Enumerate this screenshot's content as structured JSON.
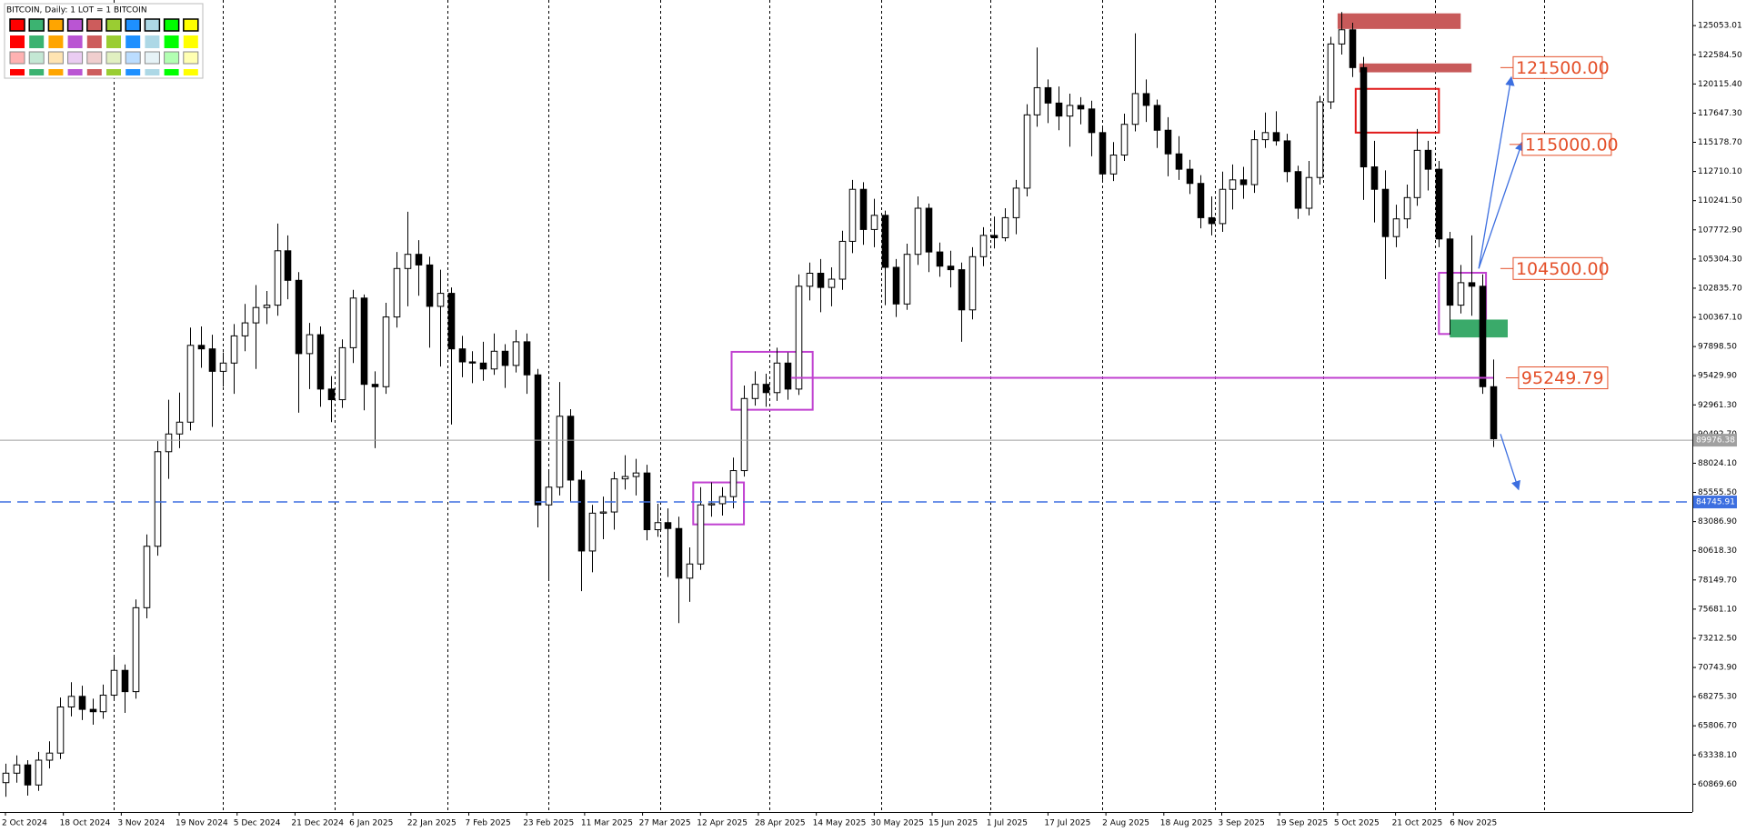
{
  "chart_data": {
    "type": "candlestick",
    "title": "BITCOIN, Daily:  1 LOT = 1 BITCOIN",
    "colors": {
      "up": "#ffffff",
      "down": "#000000",
      "outline": "#000000"
    },
    "x": [
      0,
      3,
      6,
      9,
      12,
      15,
      18,
      21,
      24,
      27,
      30,
      33,
      36,
      39,
      42,
      45,
      48,
      51,
      54,
      57,
      60,
      63,
      66,
      69,
      72,
      75,
      78,
      81,
      84,
      87,
      90,
      93,
      96,
      99,
      102,
      105,
      108,
      111,
      114,
      117,
      120,
      123,
      126,
      129,
      132,
      135,
      138,
      141,
      144,
      147,
      150,
      153,
      156,
      159,
      162,
      165,
      168,
      171,
      174,
      177,
      180,
      183,
      186,
      189,
      192,
      195,
      198,
      201,
      204,
      207,
      210,
      213,
      216,
      219,
      222,
      225,
      228,
      231,
      234,
      237,
      240,
      243,
      246,
      249,
      252,
      255,
      258,
      261,
      264,
      267,
      270,
      273,
      276,
      279,
      282,
      285,
      288,
      291,
      294,
      297,
      300,
      303,
      306,
      309,
      312,
      315,
      318,
      321,
      324,
      327,
      330,
      333,
      336,
      339,
      342,
      345,
      348,
      351,
      354,
      357,
      360,
      363,
      366,
      369,
      372,
      375,
      378,
      381,
      384,
      387,
      390,
      393,
      396,
      399,
      402,
      405,
      408,
      411
    ],
    "ohlc": [
      [
        61000,
        62600,
        59800,
        61800
      ],
      [
        61800,
        63300,
        61000,
        62500
      ],
      [
        62500,
        62900,
        59900,
        60800
      ],
      [
        60800,
        63600,
        60300,
        62900
      ],
      [
        62900,
        64500,
        62200,
        63500
      ],
      [
        63500,
        68200,
        63000,
        67400
      ],
      [
        67400,
        69500,
        66600,
        68300
      ],
      [
        68300,
        69200,
        66300,
        67200
      ],
      [
        67200,
        68100,
        65900,
        67000
      ],
      [
        67000,
        69300,
        66400,
        68400
      ],
      [
        68400,
        71800,
        67900,
        70500
      ],
      [
        70500,
        71000,
        66900,
        68700
      ],
      [
        68700,
        76500,
        68100,
        75800
      ],
      [
        75800,
        82000,
        74900,
        81000
      ],
      [
        81000,
        89900,
        80200,
        89000
      ],
      [
        89000,
        93400,
        86700,
        90500
      ],
      [
        90500,
        94000,
        89300,
        91500
      ],
      [
        91500,
        99500,
        90800,
        98000
      ],
      [
        98000,
        99600,
        96100,
        97700
      ],
      [
        97700,
        98900,
        91100,
        95800
      ],
      [
        95800,
        97400,
        94500,
        96500
      ],
      [
        96500,
        99800,
        93900,
        98800
      ],
      [
        98800,
        101500,
        97500,
        99900
      ],
      [
        99900,
        103100,
        96000,
        101200
      ],
      [
        101200,
        102600,
        99800,
        101400
      ],
      [
        101400,
        108300,
        100500,
        106000
      ],
      [
        106000,
        107300,
        101900,
        103500
      ],
      [
        103500,
        104200,
        92300,
        97300
      ],
      [
        97300,
        99900,
        94300,
        98900
      ],
      [
        98900,
        99600,
        92800,
        94300
      ],
      [
        94300,
        95400,
        91500,
        93400
      ],
      [
        93400,
        98500,
        92700,
        97800
      ],
      [
        97800,
        102700,
        96500,
        102000
      ],
      [
        102000,
        102300,
        92500,
        94700
      ],
      [
        94700,
        95800,
        89300,
        94500
      ],
      [
        94500,
        101600,
        93900,
        100400
      ],
      [
        100400,
        105900,
        99500,
        104500
      ],
      [
        104500,
        109300,
        101300,
        105700
      ],
      [
        105700,
        106900,
        102200,
        104800
      ],
      [
        104800,
        105500,
        97800,
        101300
      ],
      [
        101300,
        104400,
        96200,
        102400
      ],
      [
        102400,
        102900,
        91300,
        97700
      ],
      [
        97700,
        98800,
        95300,
        96600
      ],
      [
        96600,
        97500,
        94800,
        96500
      ],
      [
        96500,
        98300,
        95000,
        96000
      ],
      [
        96000,
        99000,
        95500,
        97500
      ],
      [
        97500,
        98100,
        94400,
        96300
      ],
      [
        96300,
        99300,
        95700,
        98300
      ],
      [
        98300,
        99000,
        93900,
        95500
      ],
      [
        95500,
        96000,
        82600,
        84500
      ],
      [
        84500,
        87500,
        78200,
        86000
      ],
      [
        86000,
        94900,
        85300,
        92000
      ],
      [
        92000,
        92600,
        84700,
        86600
      ],
      [
        86600,
        87400,
        77200,
        80600
      ],
      [
        80600,
        84500,
        78800,
        83800
      ],
      [
        83800,
        85200,
        81600,
        83900
      ],
      [
        83900,
        87300,
        82400,
        86700
      ],
      [
        86700,
        88700,
        85800,
        86900
      ],
      [
        86900,
        88400,
        85300,
        87200
      ],
      [
        87200,
        87900,
        81500,
        82400
      ],
      [
        82400,
        84600,
        81800,
        83000
      ],
      [
        83000,
        84200,
        78400,
        82500
      ],
      [
        82500,
        83500,
        74500,
        78300
      ],
      [
        78300,
        80900,
        76300,
        79500
      ],
      [
        79500,
        86000,
        79000,
        84500
      ],
      [
        84500,
        86400,
        83500,
        84600
      ],
      [
        84600,
        86000,
        83600,
        85200
      ],
      [
        85200,
        88500,
        84200,
        87400
      ],
      [
        87400,
        94600,
        86900,
        93500
      ],
      [
        93500,
        95800,
        92900,
        94700
      ],
      [
        94700,
        95600,
        92800,
        94000
      ],
      [
        94000,
        97800,
        93300,
        96500
      ],
      [
        96500,
        97400,
        93400,
        94300
      ],
      [
        94300,
        104000,
        93800,
        103000
      ],
      [
        103000,
        105000,
        101800,
        104100
      ],
      [
        104100,
        105300,
        100800,
        102900
      ],
      [
        102900,
        104600,
        101300,
        103600
      ],
      [
        103600,
        107700,
        102700,
        106800
      ],
      [
        106800,
        112000,
        105800,
        111200
      ],
      [
        111200,
        111800,
        106500,
        107800
      ],
      [
        107800,
        110400,
        106300,
        109000
      ],
      [
        109000,
        109400,
        101400,
        104600
      ],
      [
        104600,
        105300,
        100400,
        101500
      ],
      [
        101500,
        106600,
        101000,
        105700
      ],
      [
        105700,
        110600,
        104800,
        109600
      ],
      [
        109600,
        110000,
        104200,
        105900
      ],
      [
        105900,
        106700,
        103800,
        104700
      ],
      [
        104700,
        106000,
        102900,
        104400
      ],
      [
        104400,
        105000,
        98300,
        101000
      ],
      [
        101000,
        106300,
        100200,
        105500
      ],
      [
        105500,
        108000,
        104700,
        107300
      ],
      [
        107300,
        108900,
        106200,
        107100
      ],
      [
        107100,
        109600,
        106800,
        108800
      ],
      [
        108800,
        112000,
        107400,
        111300
      ],
      [
        111300,
        118400,
        110600,
        117500
      ],
      [
        117500,
        123200,
        116500,
        119800
      ],
      [
        119800,
        120500,
        116800,
        118500
      ],
      [
        118500,
        119900,
        116200,
        117400
      ],
      [
        117400,
        119300,
        114800,
        118300
      ],
      [
        118300,
        119000,
        116700,
        118000
      ],
      [
        118000,
        118700,
        114000,
        116000
      ],
      [
        116000,
        116500,
        112000,
        112500
      ],
      [
        112500,
        115200,
        111900,
        114100
      ],
      [
        114100,
        117600,
        113600,
        116700
      ],
      [
        116700,
        124400,
        116100,
        119300
      ],
      [
        119300,
        120500,
        116900,
        118300
      ],
      [
        118300,
        118800,
        114700,
        116200
      ],
      [
        116200,
        117300,
        112300,
        114200
      ],
      [
        114200,
        115700,
        112000,
        112900
      ],
      [
        112900,
        113700,
        110800,
        111700
      ],
      [
        111700,
        112400,
        107900,
        108800
      ],
      [
        108800,
        110600,
        107300,
        108300
      ],
      [
        108300,
        112700,
        107600,
        111200
      ],
      [
        111200,
        113300,
        109500,
        112000
      ],
      [
        112000,
        113100,
        110400,
        111600
      ],
      [
        111600,
        116200,
        110900,
        115400
      ],
      [
        115400,
        117700,
        114700,
        116000
      ],
      [
        116000,
        117800,
        114900,
        115300
      ],
      [
        115300,
        115900,
        111800,
        112700
      ],
      [
        112700,
        113200,
        108700,
        109600
      ],
      [
        109600,
        113600,
        109000,
        112200
      ],
      [
        112200,
        119100,
        111600,
        118600
      ],
      [
        118600,
        124100,
        118000,
        123500
      ],
      [
        123500,
        126200,
        122600,
        124700
      ],
      [
        124700,
        125300,
        120700,
        121500
      ],
      [
        121500,
        122400,
        110300,
        113100
      ],
      [
        113100,
        115300,
        108400,
        111200
      ],
      [
        111200,
        112800,
        103600,
        107200
      ],
      [
        107200,
        109900,
        106300,
        108700
      ],
      [
        108700,
        111600,
        107900,
        110500
      ],
      [
        110500,
        116300,
        109800,
        114500
      ],
      [
        114500,
        115300,
        111100,
        112900
      ],
      [
        112900,
        113600,
        106300,
        107000
      ],
      [
        107000,
        107600,
        98900,
        101400
      ],
      [
        101400,
        104800,
        100700,
        103300
      ],
      [
        103300,
        107300,
        100500,
        103000
      ],
      [
        103000,
        104000,
        93900,
        94500
      ],
      [
        94500,
        96800,
        89400,
        90100
      ]
    ],
    "xlim": [
      -1.5,
      466
    ],
    "ylim": [
      58515,
      127220
    ],
    "xticks": [
      {
        "value": 0,
        "label": "2 Oct 2024"
      },
      {
        "value": 16,
        "label": "18 Oct 2024"
      },
      {
        "value": 32,
        "label": "3 Nov 2024"
      },
      {
        "value": 48,
        "label": "19 Nov 2024"
      },
      {
        "value": 64,
        "label": "5 Dec 2024"
      },
      {
        "value": 80,
        "label": "21 Dec 2024"
      },
      {
        "value": 96,
        "label": "6 Jan 2025"
      },
      {
        "value": 112,
        "label": "22 Jan 2025"
      },
      {
        "value": 128,
        "label": "7 Feb 2025"
      },
      {
        "value": 144,
        "label": "23 Feb 2025"
      },
      {
        "value": 160,
        "label": "11 Mar 2025"
      },
      {
        "value": 176,
        "label": "27 Mar 2025"
      },
      {
        "value": 192,
        "label": "12 Apr 2025"
      },
      {
        "value": 208,
        "label": "28 Apr 2025"
      },
      {
        "value": 224,
        "label": "14 May 2025"
      },
      {
        "value": 240,
        "label": "30 May 2025"
      },
      {
        "value": 256,
        "label": "15 Jun 2025"
      },
      {
        "value": 272,
        "label": "1 Jul 2025"
      },
      {
        "value": 288,
        "label": "17 Jul 2025"
      },
      {
        "value": 304,
        "label": "2 Aug 2025"
      },
      {
        "value": 320,
        "label": "18 Aug 2025"
      },
      {
        "value": 336,
        "label": "3 Sep 2025"
      },
      {
        "value": 352,
        "label": "19 Sep 2025"
      },
      {
        "value": 368,
        "label": "5 Oct 2025"
      },
      {
        "value": 384,
        "label": "21 Oct 2025"
      },
      {
        "value": 400,
        "label": "6 Nov 2025"
      }
    ],
    "yticks": [
      125053.01,
      {
        "value": 122584.5,
        "label": "122584.50"
      },
      {
        "value": 120115.4,
        "label": "120115.40"
      },
      {
        "value": 117647.3,
        "label": "117647.30"
      },
      {
        "value": 115178.7,
        "label": "115178.70"
      },
      {
        "value": 112710.1,
        "label": "112710.10"
      },
      {
        "value": 110241.5,
        "label": "110241.50"
      },
      {
        "value": 107772.9,
        "label": "107772.90"
      },
      {
        "value": 105304.3,
        "label": "105304.30"
      },
      {
        "value": 102835.7,
        "label": "102835.70"
      },
      {
        "value": 100367.1,
        "label": "100367.10"
      },
      {
        "value": 97898.5,
        "label": "97898.50"
      },
      {
        "value": 95429.9,
        "label": "95429.90"
      },
      {
        "value": 92961.3,
        "label": "92961.30"
      },
      {
        "value": 90492.7,
        "label": "90492.70"
      },
      {
        "value": 88024.1,
        "label": "88024.10"
      },
      {
        "value": 85555.5,
        "label": "85555.50"
      },
      {
        "value": 83086.9,
        "label": "83086.90"
      },
      {
        "value": 80618.3,
        "label": "80618.30"
      },
      {
        "value": 78149.7,
        "label": "78149.70"
      },
      {
        "value": 75681.1,
        "label": "75681.10"
      },
      {
        "value": 73212.5,
        "label": "73212.50"
      },
      {
        "value": 70743.9,
        "label": "70743.90"
      },
      {
        "value": 68275.3,
        "label": "68275.30"
      },
      {
        "value": 65806.7,
        "label": "65806.70"
      },
      {
        "value": 63338.1,
        "label": "63338.10"
      },
      {
        "value": 60869.6,
        "label": "60869.60"
      }
    ],
    "period_separators": [
      30,
      60,
      91,
      122,
      150,
      181,
      211,
      242,
      272,
      303,
      334,
      364,
      395,
      425
    ],
    "current_price": {
      "value": 89976.38,
      "color": "#a0a0a0"
    },
    "level_line": {
      "value": 84745.91,
      "color": "#3d6fe0"
    },
    "annotations": [
      {
        "value": 121500,
        "label": "121500.00"
      },
      {
        "value": 115000,
        "label": "115000.00"
      },
      {
        "value": 104500,
        "label": "104500.00"
      },
      {
        "value": 95249.79,
        "label": "95249.79"
      }
    ],
    "annotation_color": "#e4502a",
    "level_segment": {
      "x": [
        217,
        411
      ],
      "annotation": 3,
      "color": "#c040d0"
    },
    "zones": [
      {
        "x": [
          200.6,
          223
        ],
        "y": [
          97450,
          92550
        ],
        "color": "#c040d0",
        "filled": false
      },
      {
        "x": [
          190,
          204
        ],
        "y": [
          86400,
          82850
        ],
        "color": "#c040d0",
        "filled": false
      },
      {
        "x": [
          396,
          409
        ],
        "y": [
          104140,
          98960
        ],
        "color": "#c040d0",
        "filled": false
      },
      {
        "x": [
          399,
          415
        ],
        "y": [
          100180,
          98670
        ],
        "color": "#3aaa6a",
        "filled": true
      },
      {
        "x": [
          368,
          402
        ],
        "y": [
          126090,
          124770
        ],
        "color": "#c85a5a",
        "filled": true
      },
      {
        "x": [
          374,
          405
        ],
        "y": [
          121850,
          121100
        ],
        "color": "#c85a5a",
        "filled": true
      },
      {
        "x": [
          373,
          396
        ],
        "y": [
          119700,
          116000
        ],
        "color": "#e01818",
        "filled": false
      }
    ],
    "arrows": [
      {
        "x": [
          407,
          416
        ],
        "y": [
          104500,
          120700
        ],
        "color": "#3d6fe0"
      },
      {
        "x": [
          407,
          419
        ],
        "y": [
          104500,
          115200
        ],
        "color": "#3d6fe0"
      },
      {
        "x": [
          413,
          418
        ],
        "y": [
          90500,
          85800
        ],
        "color": "#3d6fe0"
      }
    ]
  }
}
